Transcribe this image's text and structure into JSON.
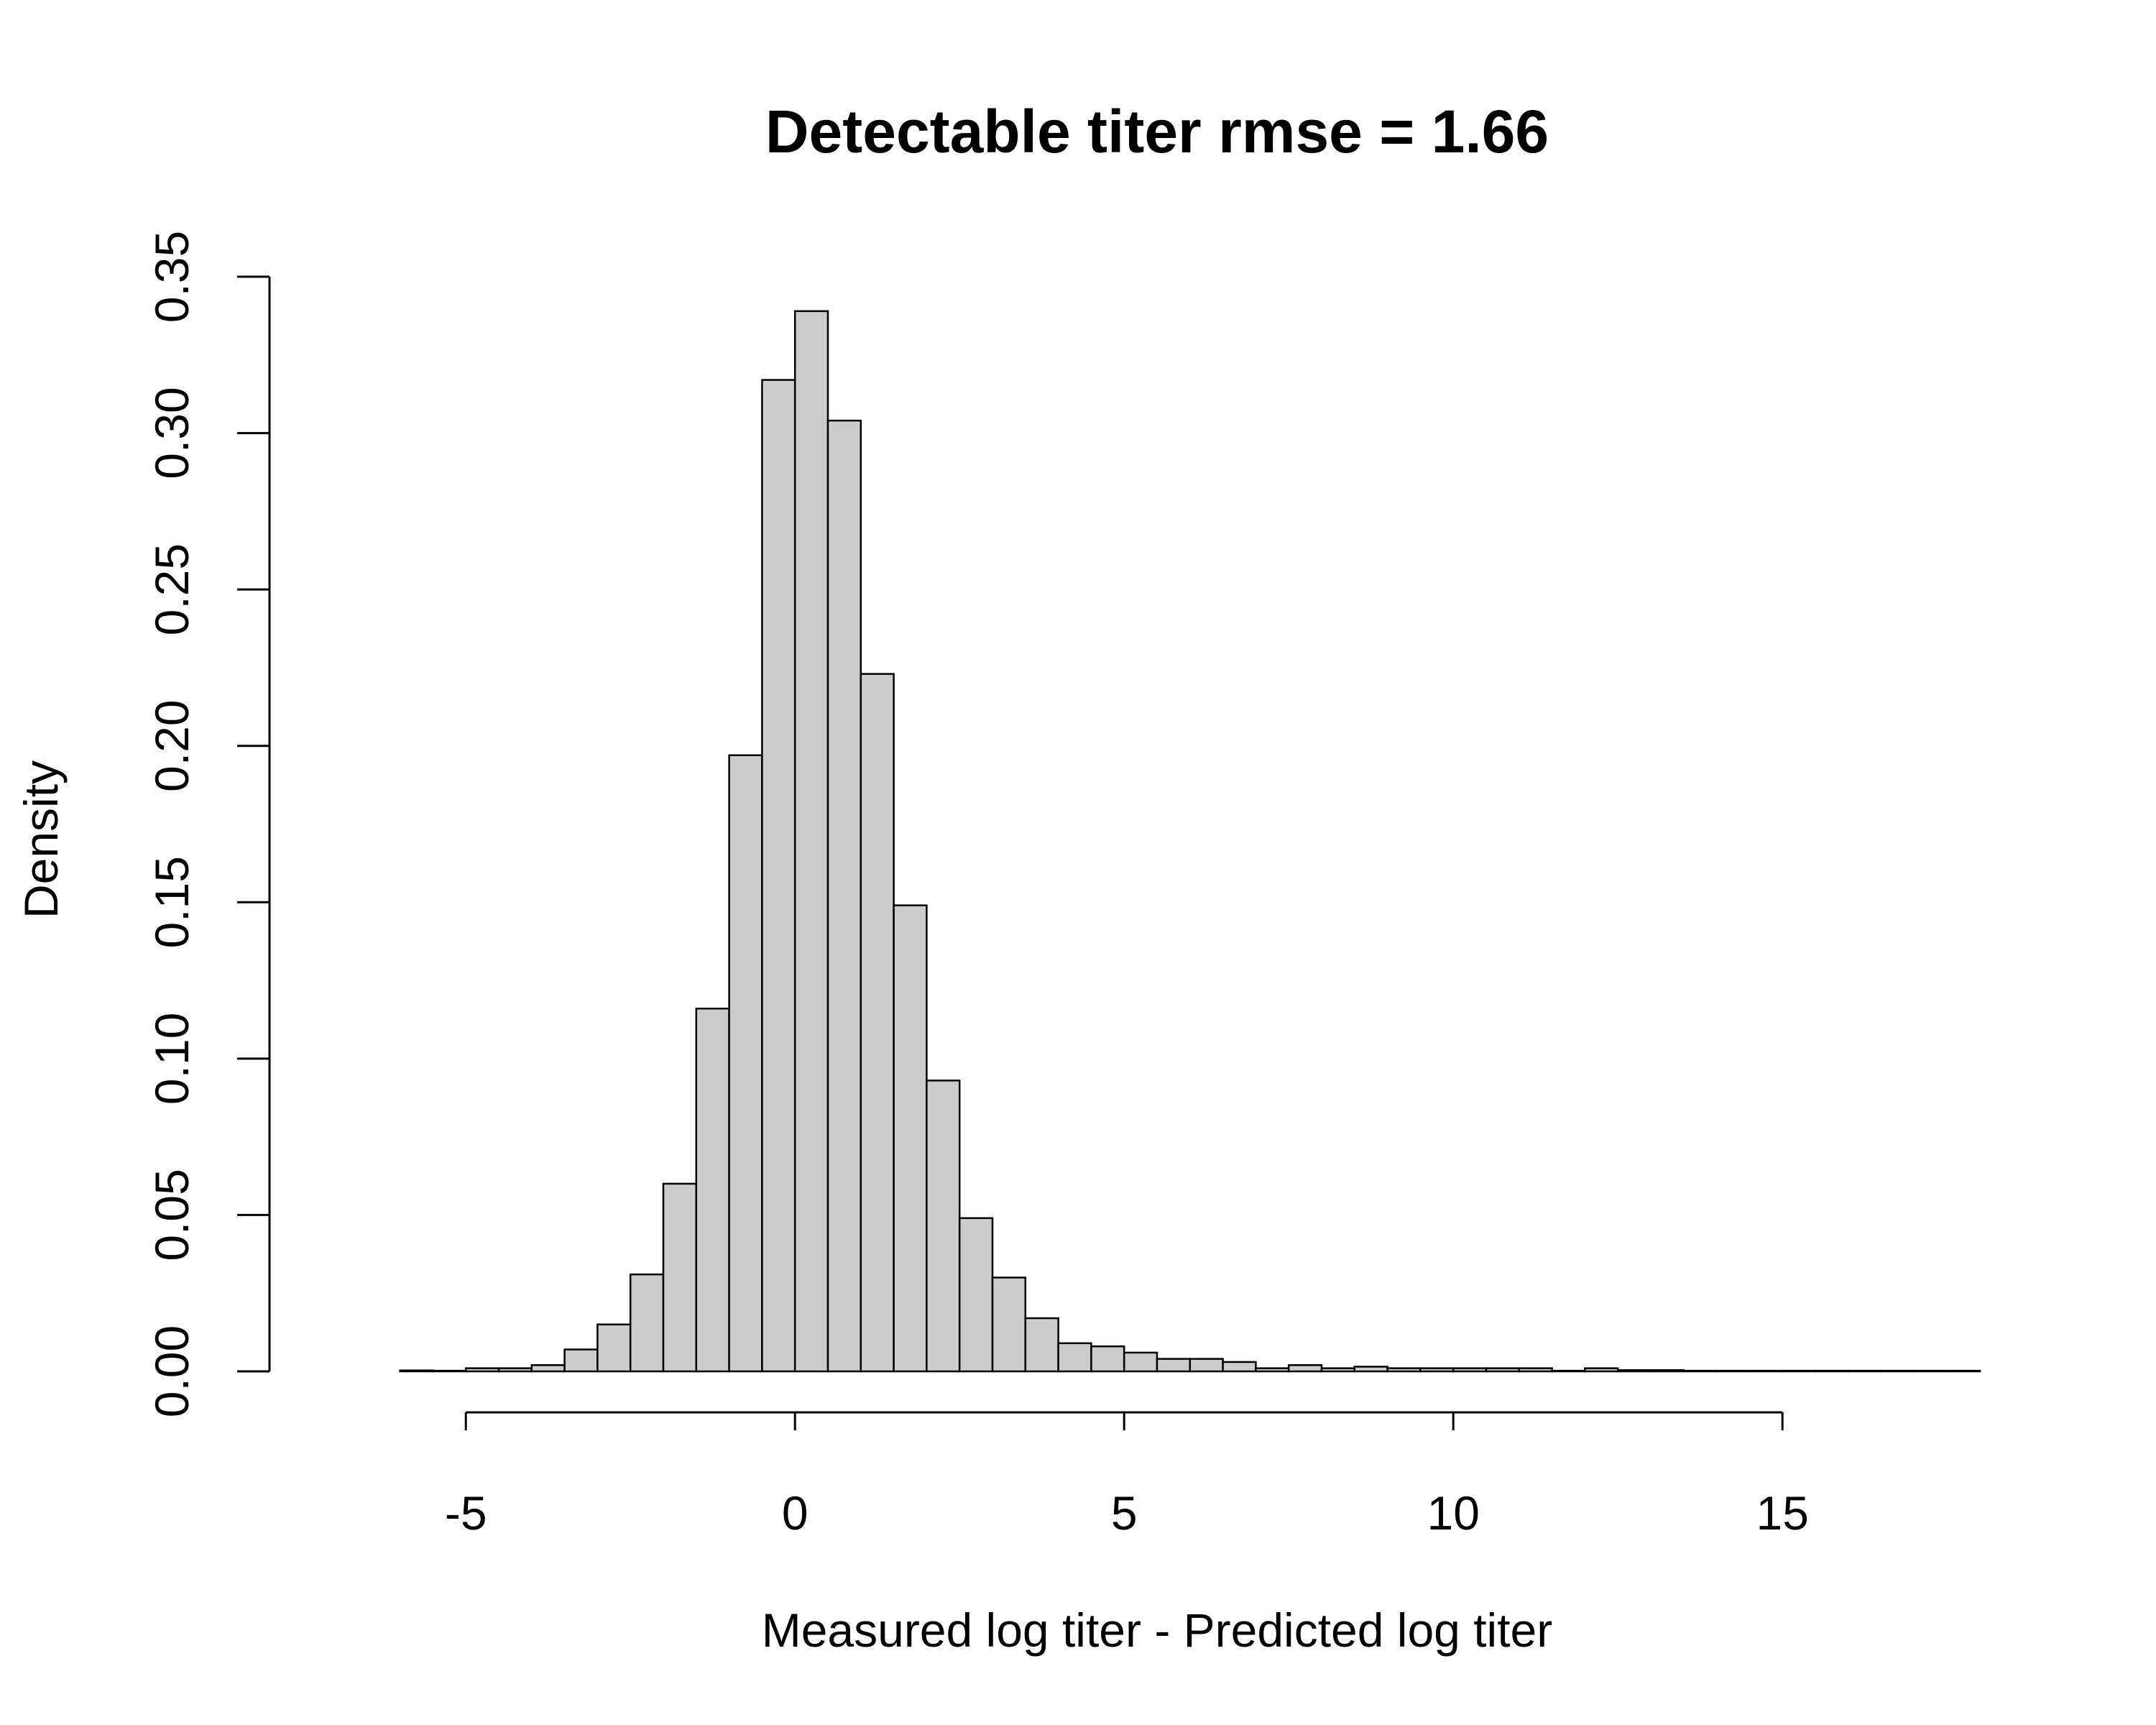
{
  "chart_data": {
    "type": "bar",
    "title": "Detectable titer rmse = 1.66",
    "xlabel": "Measured log titer - Predicted log titer",
    "ylabel": "Density",
    "xlim": [
      -7,
      18
    ],
    "ylim": [
      0,
      0.35
    ],
    "x_ticks": [
      -5,
      0,
      5,
      10,
      15
    ],
    "x_tick_labels": [
      "-5",
      "0",
      "5",
      "10",
      "15"
    ],
    "y_ticks": [
      0,
      0.05,
      0.1,
      0.15,
      0.2,
      0.25,
      0.3,
      0.35
    ],
    "y_tick_labels": [
      "0.00",
      "0.05",
      "0.10",
      "0.15",
      "0.20",
      "0.25",
      "0.30",
      "0.35"
    ],
    "bin_width": 0.5,
    "bin_starts": [
      -7,
      -6.5,
      -6,
      -5.5,
      -5,
      -4.5,
      -4,
      -3.5,
      -3,
      -2.5,
      -2,
      -1.5,
      -1,
      -0.5,
      0,
      0.5,
      1,
      1.5,
      2,
      2.5,
      3,
      3.5,
      4,
      4.5,
      5,
      5.5,
      6,
      6.5,
      7,
      7.5,
      8,
      8.5,
      9,
      9.5,
      10,
      10.5,
      11,
      11.5,
      12,
      12.5,
      13,
      13.5,
      14,
      14.5,
      15,
      15.5,
      16,
      16.5,
      17,
      17.5
    ],
    "values": [
      0,
      0,
      0.0003,
      0.0002,
      0.001,
      0.001,
      0.002,
      0.007,
      0.015,
      0.031,
      0.06,
      0.116,
      0.197,
      0.317,
      0.339,
      0.304,
      0.223,
      0.149,
      0.093,
      0.049,
      0.03,
      0.017,
      0.009,
      0.008,
      0.006,
      0.004,
      0.004,
      0.003,
      0.001,
      0.002,
      0.001,
      0.0015,
      0.001,
      0.001,
      0.001,
      0.001,
      0.001,
      0.0002,
      0.001,
      0.0004,
      0.0004,
      0.0002,
      0.0002,
      0.0002,
      0.0002,
      0.0002,
      0.0002,
      0.0002,
      0.0002,
      0.0002
    ],
    "bar_color": "#cccccc",
    "edge_color": "#000000",
    "grid": false
  }
}
